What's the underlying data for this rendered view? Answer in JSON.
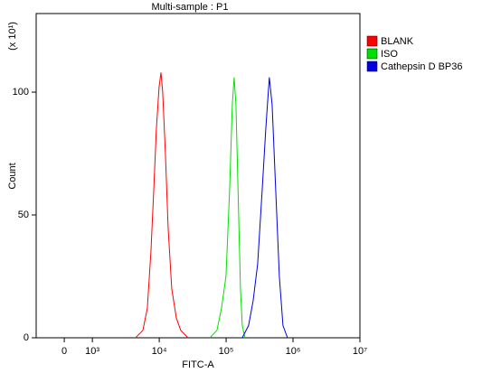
{
  "chart_data": {
    "type": "line",
    "title": "Multi-sample : P1",
    "x_label": "FITC-A",
    "y_label": "Count",
    "y_multiplier": "(x 10¹)",
    "xscale": "biexponential",
    "xlim": [
      -1000,
      10000000
    ],
    "xticks": [
      0,
      {
        "value": 1000,
        "label": "10³"
      },
      {
        "value": 10000,
        "label": "10⁴"
      },
      {
        "value": 100000,
        "label": "10⁵"
      },
      {
        "value": 1000000,
        "label": "10⁶"
      },
      {
        "value": 10000000,
        "label": "10⁷"
      }
    ],
    "ylim": [
      0,
      132
    ],
    "yticks": [
      0,
      50,
      100
    ],
    "legend": "right-top",
    "series": [
      {
        "name": "BLANK",
        "color": "#ff0000",
        "x": [
          4430,
          5690,
          6640,
          7520,
          8260,
          9060,
          9950,
          10600,
          11270,
          12360,
          13580,
          15380,
          17990,
          20990,
          26920
        ],
        "values": [
          0,
          3,
          12,
          35,
          60,
          85,
          102,
          108,
          100,
          75,
          45,
          20,
          8,
          3,
          0
        ]
      },
      {
        "name": "ISO",
        "color": "#00e000",
        "x": [
          56900,
          72900,
          85100,
          99500,
          112700,
          123600,
          131500,
          140000,
          153800,
          163700,
          174200,
          191400
        ],
        "values": [
          0,
          3,
          12,
          25,
          60,
          95,
          106,
          95,
          50,
          20,
          5,
          0
        ]
      },
      {
        "name": "Cathepsin D BP36",
        "color": "#0000e0",
        "x": [
          174200,
          216800,
          252900,
          295800,
          345100,
          390800,
          442600,
          486400,
          550800,
          623700,
          706300,
          826000
        ],
        "values": [
          0,
          5,
          15,
          30,
          60,
          85,
          106,
          95,
          60,
          25,
          5,
          0
        ]
      }
    ]
  }
}
